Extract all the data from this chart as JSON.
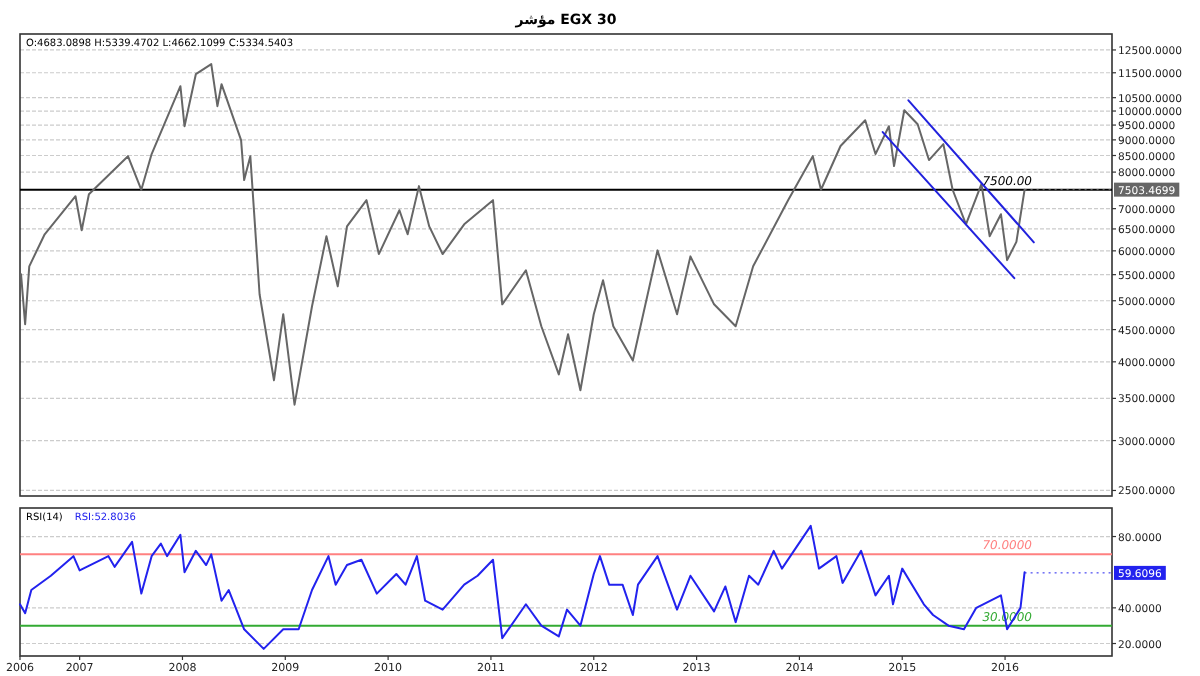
{
  "chart_data": [
    {
      "type": "line",
      "title": "مؤشر EGX 30",
      "log": "y",
      "grid": "y",
      "tick_labels": "y",
      "xlim": [
        2006.42,
        2017.04
      ],
      "ylim": [
        2450,
        13250
      ],
      "yticks": [
        {
          "value": 2500,
          "label": "2500.0000"
        },
        {
          "value": 3000,
          "label": "3000.0000"
        },
        {
          "value": 3500,
          "label": "3500.0000"
        },
        {
          "value": 4000,
          "label": "4000.0000"
        },
        {
          "value": 4500,
          "label": "4500.0000"
        },
        {
          "value": 5000,
          "label": "5000.0000"
        },
        {
          "value": 5500,
          "label": "5500.0000"
        },
        {
          "value": 6000,
          "label": "6000.0000"
        },
        {
          "value": 6500,
          "label": "6500.0000"
        },
        {
          "value": 7000,
          "label": "7000.0000"
        },
        {
          "value": 8000,
          "label": "8000.0000"
        },
        {
          "value": 8500,
          "label": "8500.0000"
        },
        {
          "value": 9000,
          "label": "9000.0000"
        },
        {
          "value": 9500,
          "label": "9500.0000"
        },
        {
          "value": 10000,
          "label": "10000.0000"
        },
        {
          "value": 10500,
          "label": "10500.0000"
        },
        {
          "value": 11500,
          "label": "11500.0000"
        },
        {
          "value": 12500,
          "label": "12500.0000"
        }
      ],
      "series": [
        {
          "color": "#666666",
          "x": [
            2006.43,
            2006.47,
            2006.51,
            2006.66,
            2006.96,
            2007.02,
            2007.09,
            2007.47,
            2007.6,
            2007.7,
            2007.98,
            2008.02,
            2008.13,
            2008.28,
            2008.34,
            2008.38,
            2008.57,
            2008.6,
            2008.66,
            2008.75,
            2008.89,
            2008.98,
            2009.09,
            2009.26,
            2009.4,
            2009.51,
            2009.6,
            2009.79,
            2009.91,
            2010.11,
            2010.19,
            2010.3,
            2010.4,
            2010.53,
            2010.74,
            2011.02,
            2011.11,
            2011.34,
            2011.49,
            2011.66,
            2011.75,
            2011.87,
            2012.0,
            2012.09,
            2012.19,
            2012.38,
            2012.62,
            2012.81,
            2012.94,
            2013.17,
            2013.38,
            2013.55,
            2013.89,
            2014.13,
            2014.21,
            2014.4,
            2014.64,
            2014.74,
            2014.87,
            2014.92,
            2015.02,
            2015.15,
            2015.26,
            2015.4,
            2015.49,
            2015.62,
            2015.77,
            2015.85,
            2015.96,
            2016.02,
            2016.11,
            2016.19
          ],
          "values": [
            5510,
            4590,
            5670,
            6375,
            7325,
            6470,
            7380,
            8480,
            7500,
            8545,
            10950,
            9460,
            11440,
            11870,
            10180,
            11030,
            8990,
            7770,
            8480,
            5120,
            3740,
            4760,
            3420,
            4900,
            6330,
            5270,
            6560,
            7220,
            5930,
            6960,
            6375,
            7600,
            6560,
            5930,
            6610,
            7220,
            4935,
            5590,
            4555,
            3820,
            4425,
            3605,
            4760,
            5390,
            4555,
            4020,
            6010,
            4760,
            5880,
            4935,
            4555,
            5670,
            7220,
            8480,
            7500,
            8800,
            9670,
            8545,
            9460,
            8180,
            10030,
            9530,
            8360,
            8860,
            7500,
            6610,
            7655,
            6330,
            6860,
            5800,
            6200,
            7503
          ]
        },
        {
          "color": "#2222dd",
          "x": [
            2015.06,
            2016.28
          ],
          "values": [
            10400,
            6190
          ]
        },
        {
          "color": "#2222dd",
          "x": [
            2014.81,
            2016.09
          ],
          "values": [
            9260,
            5430
          ]
        }
      ],
      "ref_lines": [
        {
          "axis": "y",
          "value": 7500,
          "label": "7500.00",
          "color": "#000000"
        }
      ],
      "annotations": [
        "O:4683.0898 H:5339.4702 L:4662.1099 C:5334.5403",
        {
          "text": "7503.4699",
          "x": 2016.19,
          "y": 7503.4699
        }
      ]
    },
    {
      "type": "line",
      "title": "RSI(14)",
      "grid": "y",
      "xlim": [
        2006.42,
        2017.04
      ],
      "xticks": [
        {
          "value": 2006.42,
          "label": "2006"
        },
        2007,
        2008,
        2009,
        2010,
        2011,
        2012,
        2013,
        2014,
        2015,
        2016
      ],
      "ylim": [
        13,
        96
      ],
      "yticks": [
        {
          "value": 20,
          "label": "20.0000"
        },
        {
          "value": 40,
          "label": "40.0000"
        },
        {
          "value": 80,
          "label": "80.0000"
        }
      ],
      "series": [
        {
          "name": "RSI:52.8036",
          "color": "#2222ee",
          "x": [
            2006.42,
            2006.47,
            2006.53,
            2006.72,
            2006.94,
            2007.0,
            2007.28,
            2007.34,
            2007.51,
            2007.6,
            2007.7,
            2007.79,
            2007.85,
            2007.98,
            2008.02,
            2008.13,
            2008.23,
            2008.28,
            2008.38,
            2008.45,
            2008.6,
            2008.79,
            2008.98,
            2009.13,
            2009.26,
            2009.42,
            2009.49,
            2009.6,
            2009.74,
            2009.89,
            2010.08,
            2010.17,
            2010.28,
            2010.36,
            2010.53,
            2010.74,
            2010.87,
            2011.02,
            2011.11,
            2011.34,
            2011.49,
            2011.66,
            2011.74,
            2011.87,
            2012.0,
            2012.06,
            2012.15,
            2012.28,
            2012.38,
            2012.43,
            2012.62,
            2012.81,
            2012.94,
            2013.17,
            2013.28,
            2013.38,
            2013.51,
            2013.6,
            2013.75,
            2013.83,
            2014.11,
            2014.19,
            2014.36,
            2014.42,
            2014.6,
            2014.74,
            2014.87,
            2014.91,
            2015.0,
            2015.21,
            2015.3,
            2015.45,
            2015.6,
            2015.72,
            2015.96,
            2016.02,
            2016.15,
            2016.19
          ],
          "values": [
            42,
            37,
            50,
            58,
            69,
            61,
            69,
            63,
            77,
            48,
            69,
            76,
            69,
            81,
            60,
            72,
            64,
            70,
            44,
            50,
            28,
            17,
            28,
            28,
            50,
            69,
            53,
            64,
            67,
            48,
            59,
            53,
            69,
            44,
            39,
            53,
            58,
            67,
            23,
            42,
            30,
            24,
            39,
            30,
            59,
            69,
            53,
            53,
            36,
            53,
            69,
            39,
            58,
            38,
            52,
            32,
            58,
            53,
            72,
            62,
            86,
            62,
            69,
            54,
            72,
            47,
            58,
            42,
            62,
            42,
            36,
            30,
            28,
            40,
            47,
            28,
            40,
            60
          ]
        }
      ],
      "ref_lines": [
        {
          "axis": "y",
          "value": 70,
          "label": "70.0000",
          "color": "#ff8080"
        },
        {
          "axis": "y",
          "value": 30,
          "label": "30.0000",
          "color": "#33aa33"
        }
      ],
      "annotations": [
        {
          "text": "59.6096",
          "x": 2016.19,
          "y": 59.6096
        }
      ]
    }
  ]
}
